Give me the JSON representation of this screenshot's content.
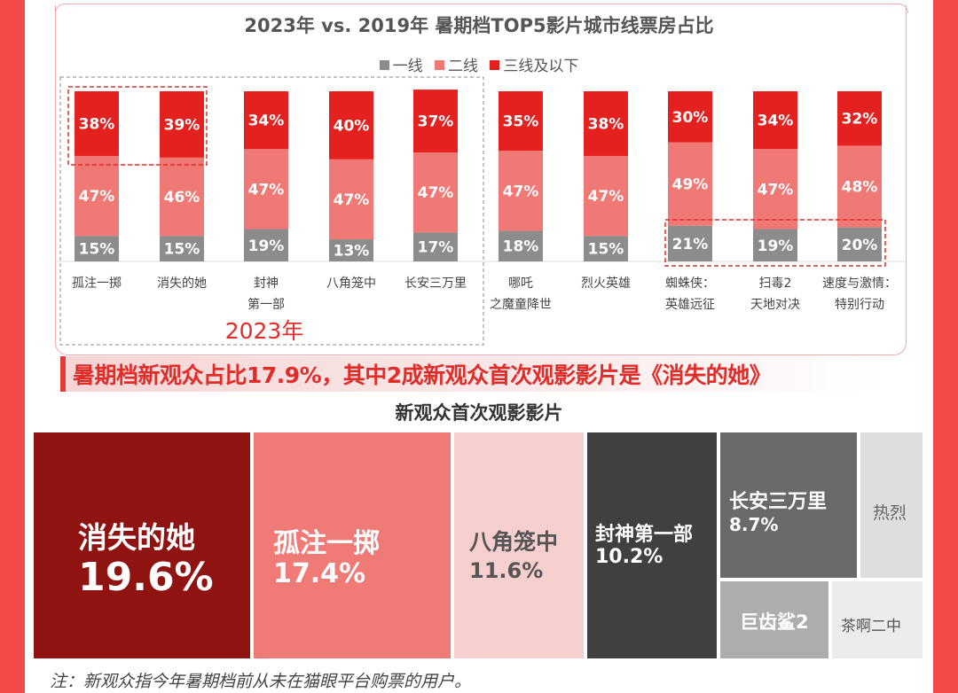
{
  "chart_data": [
    {
      "type": "bar",
      "stacked": true,
      "percent": true,
      "title": "2023年 vs. 2019年 暑期档TOP5影片城市线票房占比",
      "categories": [
        "孤注一掷",
        "消失的她",
        "封神第一部",
        "八角笼中",
        "长安三万里",
        "哪吒之魔童降世",
        "烈火英雄",
        "蜘蛛侠：英雄远征",
        "扫毒2天地对决",
        "速度与激情：特别行动"
      ],
      "category_lines": [
        [
          "孤注一掷"
        ],
        [
          "消失的她"
        ],
        [
          "封神",
          "第一部"
        ],
        [
          "八角笼中"
        ],
        [
          "长安三万里"
        ],
        [
          "哪吒",
          "之魔童降世"
        ],
        [
          "烈火英雄"
        ],
        [
          "蜘蛛侠：",
          "英雄远征"
        ],
        [
          "扫毒2",
          "天地对决"
        ],
        [
          "速度与激情：",
          "特别行动"
        ]
      ],
      "series": [
        {
          "name": "一线",
          "color": "#8c8c8c",
          "values": [
            15,
            15,
            19,
            13,
            17,
            18,
            15,
            21,
            19,
            20
          ]
        },
        {
          "name": "二线",
          "color": "#f07975",
          "values": [
            47,
            46,
            47,
            47,
            47,
            47,
            47,
            49,
            47,
            48
          ]
        },
        {
          "name": "三线及以下",
          "color": "#e5211f",
          "values": [
            38,
            39,
            34,
            40,
            37,
            35,
            38,
            30,
            34,
            32
          ]
        }
      ],
      "ylim": [
        0,
        100
      ],
      "legend": "top-center",
      "group_label": "2023年"
    },
    {
      "type": "treemap",
      "title": "新观众首次观影影片",
      "items": [
        {
          "name": "消失的她",
          "value": 19.6,
          "label": "19.6%",
          "color": "#8f1411",
          "text_color": "#ffffff"
        },
        {
          "name": "孤注一掷",
          "value": 17.4,
          "label": "17.4%",
          "color": "#f07a76",
          "text_color": "#ffffff"
        },
        {
          "name": "八角笼中",
          "value": 11.6,
          "label": "11.6%",
          "color": "#f8cfcf",
          "text_color": "#555555"
        },
        {
          "name": "封神第一部",
          "value": 10.2,
          "label": "10.2%",
          "color": "#404040",
          "text_color": "#ffffff"
        },
        {
          "name": "长安三万里",
          "value": 8.7,
          "label": "8.7%",
          "color": "#6a6a6a",
          "text_color": "#ffffff"
        },
        {
          "name": "热烈",
          "value": null,
          "label": "",
          "color": "#dedede",
          "text_color": "#666666"
        },
        {
          "name": "巨齿鲨2",
          "value": null,
          "label": "",
          "color": "#adadad",
          "text_color": "#ffffff"
        },
        {
          "name": "茶啊二中",
          "value": null,
          "label": "",
          "color": "#ececec",
          "text_color": "#555555"
        }
      ]
    }
  ],
  "banner": "暑期档新观众占比17.9%，其中2成新观众首次观影影片是《消失的她》",
  "note": "注：新观众指今年暑期档前从未在猫眼平台购票的用户。",
  "accent_color": "#e12d2a"
}
